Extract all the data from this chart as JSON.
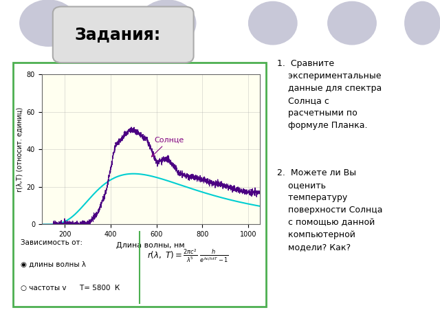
{
  "title": "Задания:",
  "plot_bg_color": "#FFFFF0",
  "plot_border_color": "#4CAF50",
  "xlabel": "Длина волны, нм",
  "ylabel": "r(λ,T) (относит. единиц)",
  "xlim": [
    100,
    1050
  ],
  "ylim": [
    0,
    80
  ],
  "xticks": [
    200,
    400,
    600,
    800,
    1000
  ],
  "yticks": [
    0,
    20,
    40,
    60,
    80
  ],
  "T": 5800,
  "planck_color": "#00CED1",
  "sun_color": "#4B0082",
  "sun_label": "Солнце",
  "footer_bg": "#C8E6C9",
  "footer_text1": "Зависимость от:",
  "footer_text2": "◉ длины волны λ",
  "footer_text3": "○ частоты v      T= 5800  К",
  "task1": "1.  Сравните\n    экспериментальные\n    данные для спектра\n    Солнца с\n    расчетными по\n    формуле Планка.",
  "task2": "2.  Можете ли Вы\n    оценить\n    температуру\n    поверхности Солнца\n    с помощью данной\n    компьютерной\n    модели? Как?"
}
